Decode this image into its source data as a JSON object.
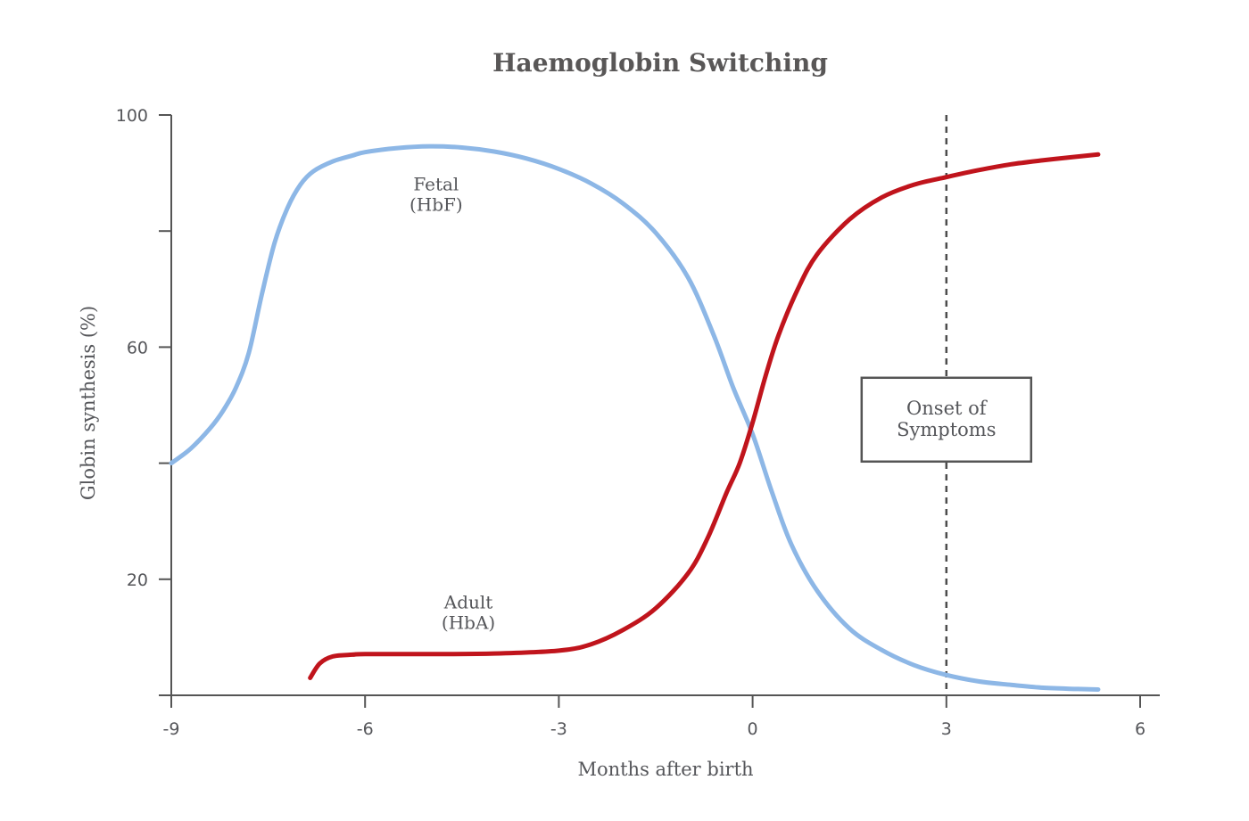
{
  "chart_data": {
    "type": "line",
    "title": "Haemoglobin Switching",
    "xlabel": "Months after birth",
    "ylabel": "Globin synthesis (%)",
    "xlim": [
      -9,
      6
    ],
    "ylim": [
      0,
      100
    ],
    "x_ticks": [
      -9,
      -6,
      -3,
      0,
      3,
      6
    ],
    "x_tick_labels": [
      "-9",
      "-6",
      "-3",
      "0",
      "3",
      "6"
    ],
    "y_ticks": [
      0,
      20,
      40,
      60,
      80,
      100
    ],
    "y_tick_labels": [
      "",
      "20",
      "",
      "60",
      "",
      "100"
    ],
    "series": [
      {
        "label_lines": [
          "Fetal",
          "(HbF)"
        ],
        "label_at": [
          -4.9,
          87
        ],
        "color": "#8db7e6",
        "x": [
          -9.0,
          -8.7,
          -8.4,
          -8.2,
          -8.0,
          -7.8,
          -7.6,
          -7.4,
          -7.2,
          -7.0,
          -6.8,
          -6.5,
          -6.2,
          -6.0,
          -5.5,
          -5.0,
          -4.5,
          -4.0,
          -3.5,
          -3.0,
          -2.5,
          -2.0,
          -1.5,
          -1.0,
          -0.6,
          -0.3,
          0.0,
          0.3,
          0.6,
          1.0,
          1.5,
          2.0,
          2.5,
          3.0,
          3.5,
          4.0,
          4.5,
          5.0,
          5.35
        ],
        "y": [
          40.0,
          42.5,
          46.0,
          49.0,
          53.0,
          59.0,
          69.0,
          78.0,
          84.0,
          88.0,
          90.3,
          92.0,
          93.0,
          93.6,
          94.3,
          94.6,
          94.4,
          93.7,
          92.5,
          90.7,
          88.2,
          84.7,
          79.7,
          72.0,
          62.0,
          53.0,
          45.0,
          35.0,
          26.0,
          18.0,
          11.5,
          7.8,
          5.2,
          3.5,
          2.4,
          1.8,
          1.3,
          1.1,
          1.0
        ]
      },
      {
        "label_lines": [
          "Adult",
          "(HbA)"
        ],
        "label_at": [
          -4.4,
          15
        ],
        "color": "#c0141c",
        "x": [
          -6.85,
          -6.7,
          -6.5,
          -6.2,
          -6.0,
          -5.0,
          -4.0,
          -3.0,
          -2.5,
          -2.0,
          -1.5,
          -1.0,
          -0.7,
          -0.4,
          -0.2,
          0.0,
          0.2,
          0.4,
          0.7,
          1.0,
          1.5,
          2.0,
          2.5,
          3.0,
          3.5,
          4.0,
          4.5,
          5.0,
          5.35
        ],
        "y": [
          3.0,
          5.5,
          6.7,
          7.0,
          7.1,
          7.1,
          7.2,
          7.7,
          8.8,
          11.3,
          15.0,
          21.0,
          27.0,
          35.0,
          40.0,
          47.0,
          55.0,
          62.0,
          70.0,
          76.0,
          82.0,
          85.8,
          88.0,
          89.3,
          90.5,
          91.5,
          92.2,
          92.8,
          93.2
        ]
      }
    ],
    "marker_line": {
      "x": 3,
      "style": "dashed",
      "color": "#4d4d4d"
    },
    "annotation_box": {
      "lines": [
        "Onset of",
        "Symptoms"
      ],
      "anchor_x": 3,
      "anchor_y": 47.5
    },
    "grid": false,
    "legend": "none"
  }
}
